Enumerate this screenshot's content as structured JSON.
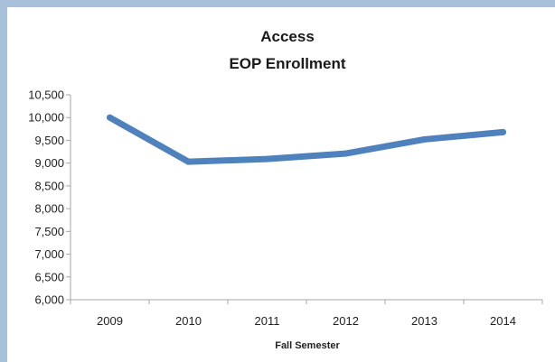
{
  "chart_data": {
    "type": "line",
    "title": "Access",
    "subtitle": "EOP Enrollment",
    "xlabel": "Fall Semester",
    "ylabel": "",
    "categories": [
      "2009",
      "2010",
      "2011",
      "2012",
      "2013",
      "2014"
    ],
    "series": [
      {
        "values": [
          10000,
          9030,
          9090,
          9210,
          9520,
          9680
        ]
      }
    ],
    "ylim": [
      6000,
      10500
    ],
    "yticks": [
      6000,
      6500,
      7000,
      7500,
      8000,
      8500,
      9000,
      9500,
      10000,
      10500
    ],
    "ytick_labels": [
      "6,000",
      "6,500",
      "7,000",
      "7,500",
      "8,000",
      "8,500",
      "9,000",
      "9,500",
      "10,000",
      "10,500"
    ],
    "grid": false,
    "legend": "none",
    "colors": {
      "line": "#4f81bd",
      "axis": "#a6a6a6",
      "frame": "#a9c0db"
    }
  }
}
